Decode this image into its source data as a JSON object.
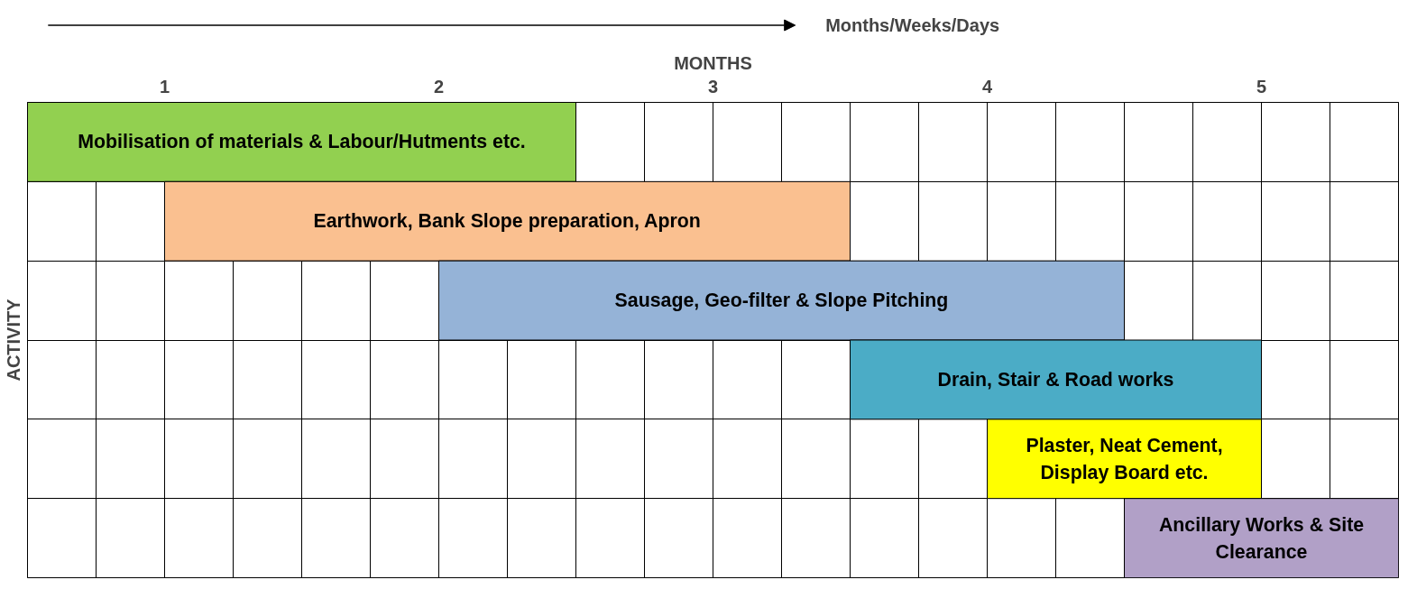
{
  "chart_data": {
    "type": "bar",
    "orientation": "horizontal",
    "xlabel": "MONTHS",
    "ylabel": "ACTIVITY",
    "annotations": [
      "Months/Weeks/Days"
    ],
    "categories": [
      "Mobilisation of materials & Labour/Hutments etc.",
      "Earthwork, Bank Slope preparation, Apron",
      "Sausage, Geo-filter & Slope Pitching",
      "Drain, Stair & Road works",
      "Plaster, Neat Cement, Display Board etc.",
      "Ancillary Works & Site Clearance"
    ],
    "base": [
      0,
      0.5,
      1.5,
      3,
      3.5,
      4
    ],
    "values": [
      2,
      2.5,
      2.5,
      1.5,
      1,
      1
    ],
    "colors": [
      "#92d050",
      "#fac090",
      "#95b3d7",
      "#4bacc6",
      "#ffff00",
      "#b1a0c7"
    ],
    "xlim": [
      0,
      5
    ],
    "xticks": [
      {
        "value": 0,
        "label": null
      },
      {
        "value": 0.25,
        "label": null
      },
      {
        "value": 0.5,
        "label": "1"
      },
      {
        "value": 0.75,
        "label": null
      },
      {
        "value": 1,
        "label": null
      },
      {
        "value": 1.25,
        "label": null
      },
      {
        "value": 1.5,
        "label": "2"
      },
      {
        "value": 1.75,
        "label": null
      },
      {
        "value": 2,
        "label": null
      },
      {
        "value": 2.25,
        "label": null
      },
      {
        "value": 2.5,
        "label": "3"
      },
      {
        "value": 2.75,
        "label": null
      },
      {
        "value": 3,
        "label": null
      },
      {
        "value": 3.25,
        "label": null
      },
      {
        "value": 3.5,
        "label": "4"
      },
      {
        "value": 3.75,
        "label": null
      },
      {
        "value": 4,
        "label": null
      },
      {
        "value": 4.25,
        "label": null
      },
      {
        "value": 4.5,
        "label": "5"
      },
      {
        "value": 4.75,
        "label": null
      },
      {
        "value": 5,
        "label": null
      }
    ],
    "grid": true
  }
}
